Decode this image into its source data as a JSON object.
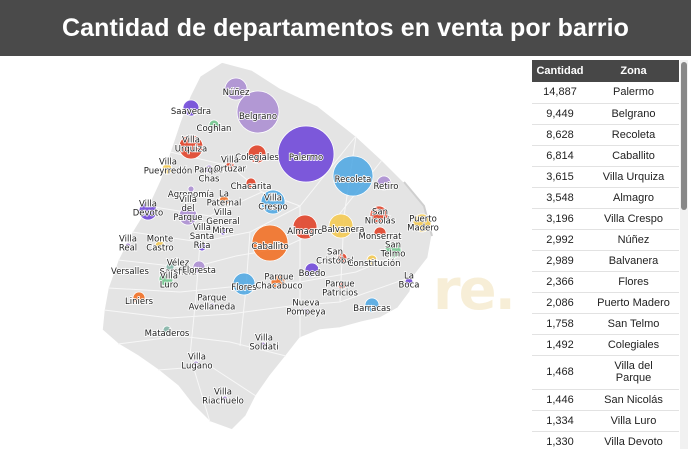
{
  "title": "Cantidad de departamentos en venta por barrio",
  "watermark": "re.",
  "table": {
    "headers": [
      "Cantidad",
      "Zona"
    ],
    "rows": [
      {
        "cantidad": "14,887",
        "zona": "Palermo"
      },
      {
        "cantidad": "9,449",
        "zona": "Belgrano"
      },
      {
        "cantidad": "8,628",
        "zona": "Recoleta"
      },
      {
        "cantidad": "6,814",
        "zona": "Caballito"
      },
      {
        "cantidad": "3,615",
        "zona": "Villa Urquiza"
      },
      {
        "cantidad": "3,548",
        "zona": "Almagro"
      },
      {
        "cantidad": "3,196",
        "zona": "Villa Crespo"
      },
      {
        "cantidad": "2,992",
        "zona": "Núñez"
      },
      {
        "cantidad": "2,989",
        "zona": "Balvanera"
      },
      {
        "cantidad": "2,366",
        "zona": "Flores"
      },
      {
        "cantidad": "2,086",
        "zona": "Puerto Madero"
      },
      {
        "cantidad": "1,758",
        "zona": "San Telmo"
      },
      {
        "cantidad": "1,492",
        "zona": "Colegiales"
      },
      {
        "cantidad": "1,468",
        "zona": "Villa del Parque"
      },
      {
        "cantidad": "1,446",
        "zona": "San Nicolás"
      },
      {
        "cantidad": "1,334",
        "zona": "Villa Luro"
      },
      {
        "cantidad": "1,330",
        "zona": "Villa Devoto"
      }
    ]
  },
  "map": {
    "bubble_colors": {
      "purple_light": "#a98bd1",
      "purple_dark": "#6a3fd8",
      "blue": "#4aa6e3",
      "orange": "#f26a1b",
      "red": "#e0391f",
      "yellow": "#f5c84a",
      "green": "#6cc58a",
      "teal": "#7fb3a5"
    },
    "labels": [
      {
        "id": "nunez",
        "text": "Núñez"
      },
      {
        "id": "saavedra",
        "text": "Saavedra"
      },
      {
        "id": "belgrano",
        "text": "Belgrano"
      },
      {
        "id": "coghlan",
        "text": "Coghlan"
      },
      {
        "id": "villa-urquiza",
        "text": "Villa\nUrquiza"
      },
      {
        "id": "colegiales",
        "text": "Colegiales"
      },
      {
        "id": "palermo",
        "text": "Palermo"
      },
      {
        "id": "villa-pueyrredon",
        "text": "Villa\nPueyrredón"
      },
      {
        "id": "parque-chas",
        "text": "Parque\nChas"
      },
      {
        "id": "villa-ortuzar",
        "text": "Villa\nOrtúzar"
      },
      {
        "id": "chacarita",
        "text": "Chacarita"
      },
      {
        "id": "recoleta",
        "text": "Recoleta"
      },
      {
        "id": "retiro",
        "text": "Retiro"
      },
      {
        "id": "agronomia",
        "text": "Agronomía"
      },
      {
        "id": "la-paternal",
        "text": "La\nPaternal"
      },
      {
        "id": "villa-crespo",
        "text": "Villa\nCrespo"
      },
      {
        "id": "villa-devoto",
        "text": "Villa\nDevoto"
      },
      {
        "id": "villa-del-parque",
        "text": "Villa\ndel\nParque"
      },
      {
        "id": "villa-gral-mitre",
        "text": "Villa\nGeneral\nMitre"
      },
      {
        "id": "almagro",
        "text": "Almagro"
      },
      {
        "id": "balvanera",
        "text": "Balvanera"
      },
      {
        "id": "san-nicolas",
        "text": "San\nNicolás"
      },
      {
        "id": "puerto-madero",
        "text": "Puerto\nMadero"
      },
      {
        "id": "monserrat",
        "text": "Monserrat"
      },
      {
        "id": "villa-real",
        "text": "Villa\nReal"
      },
      {
        "id": "monte-castro",
        "text": "Monte\nCastro"
      },
      {
        "id": "villa-santa-rita",
        "text": "Villa\nSanta\nRita"
      },
      {
        "id": "caballito",
        "text": "Caballito"
      },
      {
        "id": "san-telmo",
        "text": "San\nTelmo"
      },
      {
        "id": "san-cristobal",
        "text": "San\nCristóbal"
      },
      {
        "id": "constitucion",
        "text": "Constitución"
      },
      {
        "id": "versalles",
        "text": "Versalles"
      },
      {
        "id": "velez-sarsfield",
        "text": "Vélez\nSarsfield"
      },
      {
        "id": "floresta",
        "text": "Floresta"
      },
      {
        "id": "villa-luro",
        "text": "Villa\nLuro"
      },
      {
        "id": "boedo",
        "text": "Boedo"
      },
      {
        "id": "flores",
        "text": "Flores"
      },
      {
        "id": "parque-chacabuco",
        "text": "Parque\nChacabuco"
      },
      {
        "id": "parque-patricios",
        "text": "Parque\nPatricios"
      },
      {
        "id": "la-boca",
        "text": "La\nBoca"
      },
      {
        "id": "liniers",
        "text": "Liniers"
      },
      {
        "id": "barracas",
        "text": "Barracas"
      },
      {
        "id": "parque-avellaneda",
        "text": "Parque\nAvellaneda"
      },
      {
        "id": "nueva-pompeya",
        "text": "Nueva\nPompeya"
      },
      {
        "id": "mataderos",
        "text": "Mataderos"
      },
      {
        "id": "villa-soldati",
        "text": "Villa\nSoldati"
      },
      {
        "id": "villa-lugano",
        "text": "Villa\nLugano"
      },
      {
        "id": "villa-riachuelo",
        "text": "Villa\nRiachuelo"
      }
    ]
  }
}
